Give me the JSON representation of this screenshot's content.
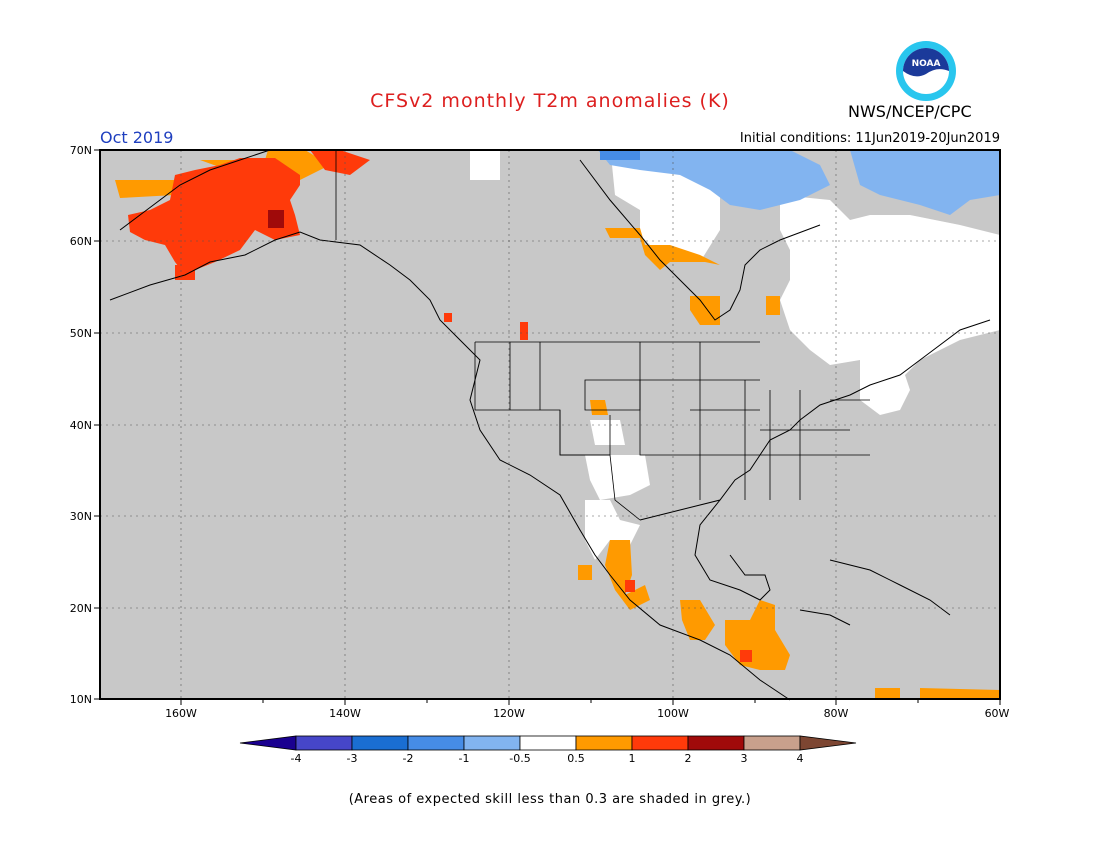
{
  "title": "CFSv2 monthly T2m anomalies (K)",
  "valid_month": "Oct 2019",
  "initial_conditions": "Initial conditions: 11Jun2019-20Jun2019",
  "agency": "NWS/NCEP/CPC",
  "logo_text": "NOAA",
  "footnote": "(Areas of expected skill less than 0.3 are shaded in grey.)",
  "colors": {
    "title": "#dd1f1f",
    "month": "#1f3fbf",
    "ocean_grey": "#c8c8c8",
    "skill_white": "#ffffff"
  },
  "map": {
    "lat_labels": [
      "70N",
      "60N",
      "50N",
      "40N",
      "30N",
      "20N",
      "10N"
    ],
    "lon_labels": [
      "160W",
      "140W",
      "120W",
      "100W",
      "80W",
      "60W"
    ],
    "lon_range": [
      -170,
      -60
    ],
    "lat_range": [
      10,
      70
    ]
  },
  "anomaly_regions": [
    {
      "name": "Alaska",
      "category": "1 to 2"
    },
    {
      "name": "Alaska west coast",
      "category": "0.5 to 1"
    },
    {
      "name": "Central Canada Hudson Bay",
      "category": "0.5 to 1"
    },
    {
      "name": "Northeast Canada / Greenland",
      "category": "-1 to -0.5"
    },
    {
      "name": "Mexico west coast",
      "category": "0.5 to 1"
    },
    {
      "name": "Central America",
      "category": "0.5 to 1"
    },
    {
      "name": "Southwest US",
      "category": "-0.5 to 0.5"
    }
  ],
  "colorbar": {
    "labels": [
      "-4",
      "-3",
      "-2",
      "-1",
      "-0.5",
      "0.5",
      "1",
      "2",
      "3",
      "4"
    ],
    "colors": [
      "#1a0090",
      "#4646c8",
      "#1a6ed2",
      "#468ce6",
      "#82b4f0",
      "#ffffff",
      "#ff9a00",
      "#ff3a0a",
      "#a00a0a",
      "#c8a08c",
      "#7d4632"
    ]
  }
}
